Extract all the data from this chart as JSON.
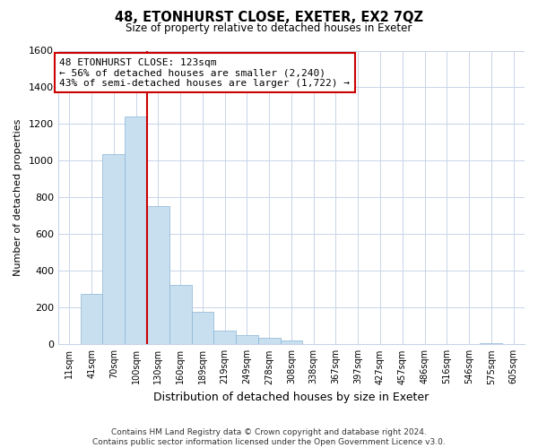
{
  "title": "48, ETONHURST CLOSE, EXETER, EX2 7QZ",
  "subtitle": "Size of property relative to detached houses in Exeter",
  "xlabel": "Distribution of detached houses by size in Exeter",
  "ylabel": "Number of detached properties",
  "bin_labels": [
    "11sqm",
    "41sqm",
    "70sqm",
    "100sqm",
    "130sqm",
    "160sqm",
    "189sqm",
    "219sqm",
    "249sqm",
    "278sqm",
    "308sqm",
    "338sqm",
    "367sqm",
    "397sqm",
    "427sqm",
    "457sqm",
    "486sqm",
    "516sqm",
    "546sqm",
    "575sqm",
    "605sqm"
  ],
  "bar_heights": [
    0,
    275,
    1035,
    1240,
    755,
    325,
    175,
    75,
    50,
    35,
    20,
    0,
    0,
    0,
    0,
    0,
    0,
    0,
    0,
    5,
    0
  ],
  "bar_color": "#c8dff0",
  "bar_edge_color": "#8ab4d4",
  "vline_color": "#cc0000",
  "annotation_text": "48 ETONHURST CLOSE: 123sqm\n← 56% of detached houses are smaller (2,240)\n43% of semi-detached houses are larger (1,722) →",
  "annotation_box_color": "#ffffff",
  "annotation_box_edge_color": "#cc0000",
  "ylim": [
    0,
    1600
  ],
  "yticks": [
    0,
    200,
    400,
    600,
    800,
    1000,
    1200,
    1400,
    1600
  ],
  "footnote": "Contains HM Land Registry data © Crown copyright and database right 2024.\nContains public sector information licensed under the Open Government Licence v3.0.",
  "background_color": "#ffffff",
  "grid_color": "#c8d4e8"
}
